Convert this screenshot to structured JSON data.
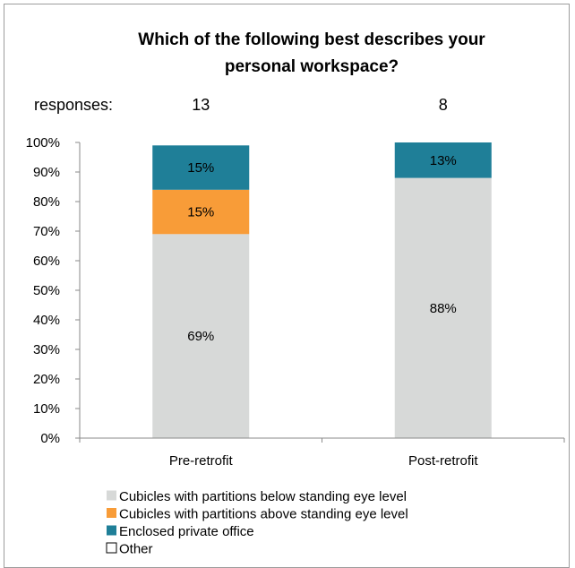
{
  "chart_data": {
    "type": "bar",
    "stacked": true,
    "title": "Which of the following best describes your personal workspace?",
    "title_lines": [
      "Which of the following best describes your",
      "personal workspace?"
    ],
    "categories": [
      "Pre-retrofit",
      "Post-retrofit"
    ],
    "responses_label": "responses:",
    "responses": [
      "13",
      "8"
    ],
    "ylim": [
      0,
      100
    ],
    "yticks": [
      "0%",
      "10%",
      "20%",
      "30%",
      "40%",
      "50%",
      "60%",
      "70%",
      "80%",
      "90%",
      "100%"
    ],
    "series": [
      {
        "name": "Cubicles with partitions below standing eye level",
        "color": "#d7d9d8",
        "values": [
          69,
          88
        ],
        "labels": [
          "69%",
          "88%"
        ]
      },
      {
        "name": "Cubicles with partitions above standing eye level",
        "color": "#f89c38",
        "values": [
          15,
          0
        ],
        "labels": [
          "15%",
          ""
        ]
      },
      {
        "name": "Enclosed private office",
        "color": "#1f7f98",
        "values": [
          15,
          13
        ],
        "labels": [
          "15%",
          "13%"
        ]
      },
      {
        "name": "Other",
        "color": "#ffffff",
        "values": [
          0,
          0
        ],
        "labels": [
          "",
          ""
        ]
      }
    ],
    "legend_position": "bottom-left",
    "grid": false
  }
}
